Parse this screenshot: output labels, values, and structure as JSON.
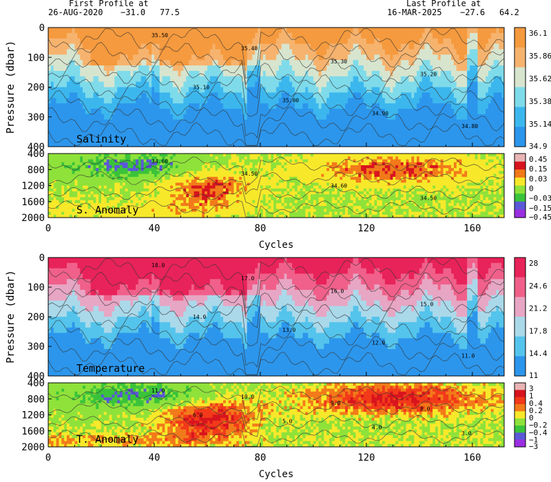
{
  "header": {
    "first_label": "First Profile at",
    "first_date": "26-AUG-2020",
    "first_lat": "−31.0",
    "first_lon": "77.5",
    "last_label": "Last Profile at",
    "last_date": "16-MAR-2025",
    "last_lat": "−27.6",
    "last_lon": "64.2"
  },
  "chart_data": [
    {
      "type": "heatmap",
      "label": "Salinity",
      "ylabel": "Pressure (dbar)",
      "ylim": [
        0,
        400
      ],
      "yticks": [
        "0",
        "100",
        "200",
        "300",
        "400"
      ],
      "xlim": [
        0,
        172
      ],
      "colorbar": [
        "36.1",
        "35.86",
        "35.62",
        "35.38",
        "35.14",
        "34.9"
      ],
      "colors": [
        "#f59a3e",
        "#f6b36e",
        "#d7e5cf",
        "#7fdbea",
        "#3cb7ee",
        "#2c96ec"
      ],
      "contour_labels": [
        "35.50",
        "35.40",
        "35.30",
        "35.20",
        "35.10",
        "35.00",
        "34.90",
        "34.80"
      ]
    },
    {
      "type": "heatmap",
      "label": "S. Anomaly",
      "ylim": [
        400,
        2000
      ],
      "yticks": [
        "400",
        "800",
        "1200",
        "1600",
        "2000"
      ],
      "xlim": [
        0,
        172
      ],
      "xlabel": "Cycles",
      "xticks": [
        "0",
        "40",
        "80",
        "120",
        "160"
      ],
      "colorbar": [
        "0.45",
        "0.15",
        "0.03",
        "0",
        "−0.03",
        "−0.15",
        "−0.45"
      ],
      "colors": [
        "#e8b4b4",
        "#d8141e",
        "#f27a1a",
        "#f8e82a",
        "#8ee23a",
        "#3ac33a",
        "#5b58d8",
        "#9a2ee0"
      ],
      "contour_labels": [
        "34.60",
        "34.50",
        "34.60",
        "34.50"
      ]
    },
    {
      "type": "heatmap",
      "label": "Temperature",
      "ylabel": "Pressure (dbar)",
      "ylim": [
        0,
        400
      ],
      "yticks": [
        "0",
        "100",
        "200",
        "300",
        "400"
      ],
      "xlim": [
        0,
        172
      ],
      "colorbar": [
        "28",
        "24.6",
        "21.2",
        "17.8",
        "14.4",
        "11"
      ],
      "colors": [
        "#e8235a",
        "#f0608a",
        "#e7a6c4",
        "#aad9ea",
        "#54c4ec",
        "#2c96ec"
      ],
      "contour_labels": [
        "18.0",
        "17.0",
        "16.0",
        "15.0",
        "14.0",
        "13.0",
        "12.0",
        "11.0"
      ]
    },
    {
      "type": "heatmap",
      "label": "T. Anomaly",
      "ylim": [
        400,
        2000
      ],
      "yticks": [
        "400",
        "800",
        "1200",
        "1600",
        "2000"
      ],
      "xlim": [
        0,
        172
      ],
      "xlabel": "Cycles",
      "xticks": [
        "0",
        "40",
        "80",
        "120",
        "160"
      ],
      "colorbar": [
        "3",
        "1",
        "0.4",
        "0.2",
        "0",
        "−0.2",
        "−0.4",
        "−1",
        "−3"
      ],
      "colors": [
        "#e8b4b4",
        "#d8141e",
        "#f23a1a",
        "#f27a1a",
        "#f8e82a",
        "#8ee23a",
        "#3ac33a",
        "#5b58d8",
        "#9a2ee0"
      ],
      "contour_labels": [
        "11.0",
        "10.0",
        "9.0",
        "8.0",
        "6.0",
        "5.0",
        "4.0",
        "3.0"
      ]
    }
  ]
}
